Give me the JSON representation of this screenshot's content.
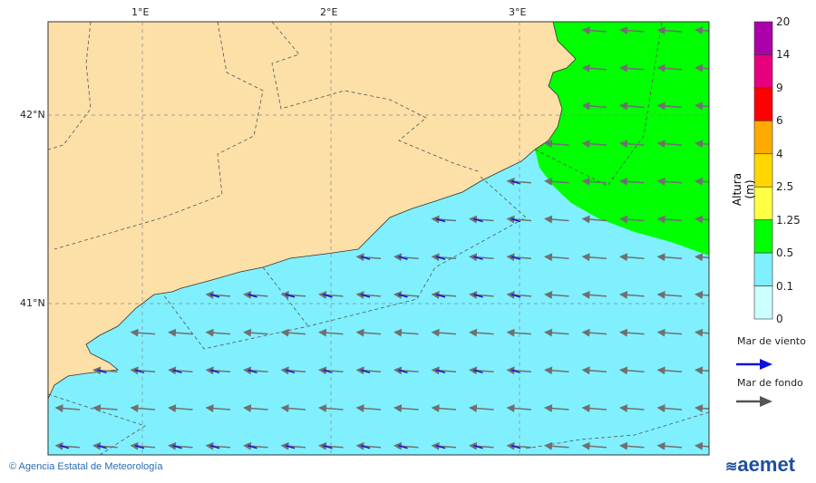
{
  "map": {
    "lon_ticks": [
      {
        "label": "1°E",
        "lon": 1
      },
      {
        "label": "2°E",
        "lon": 2
      },
      {
        "label": "3°E",
        "lon": 3
      }
    ],
    "lat_ticks": [
      {
        "label": "42°N",
        "lat": 42
      },
      {
        "label": "41°N",
        "lat": 41
      }
    ],
    "colors": {
      "land": "#fce0a8",
      "sea_low": "#80f0ff",
      "sea_mid": "#00ff00",
      "wind_arrow": "#1010e0",
      "swell_arrow": "#707070"
    },
    "swell_direction": "west"
  },
  "colorbar": {
    "title": "Altura (m)",
    "labels": [
      "20",
      "14",
      "9",
      "6",
      "4",
      "2.5",
      "1.25",
      "0.5",
      "0.1",
      "0"
    ],
    "colors": [
      "#aa00aa",
      "#e6007e",
      "#ff0000",
      "#ffaa00",
      "#ffd700",
      "#ffff44",
      "#00ff00",
      "#80f0ff",
      "#ccffff"
    ]
  },
  "legend": {
    "wind_sea": "Mar de viento",
    "swell": "Mar de fondo"
  },
  "footer": {
    "credit": "© Agencia Estatal de Meteorología",
    "logo": "aemet"
  }
}
